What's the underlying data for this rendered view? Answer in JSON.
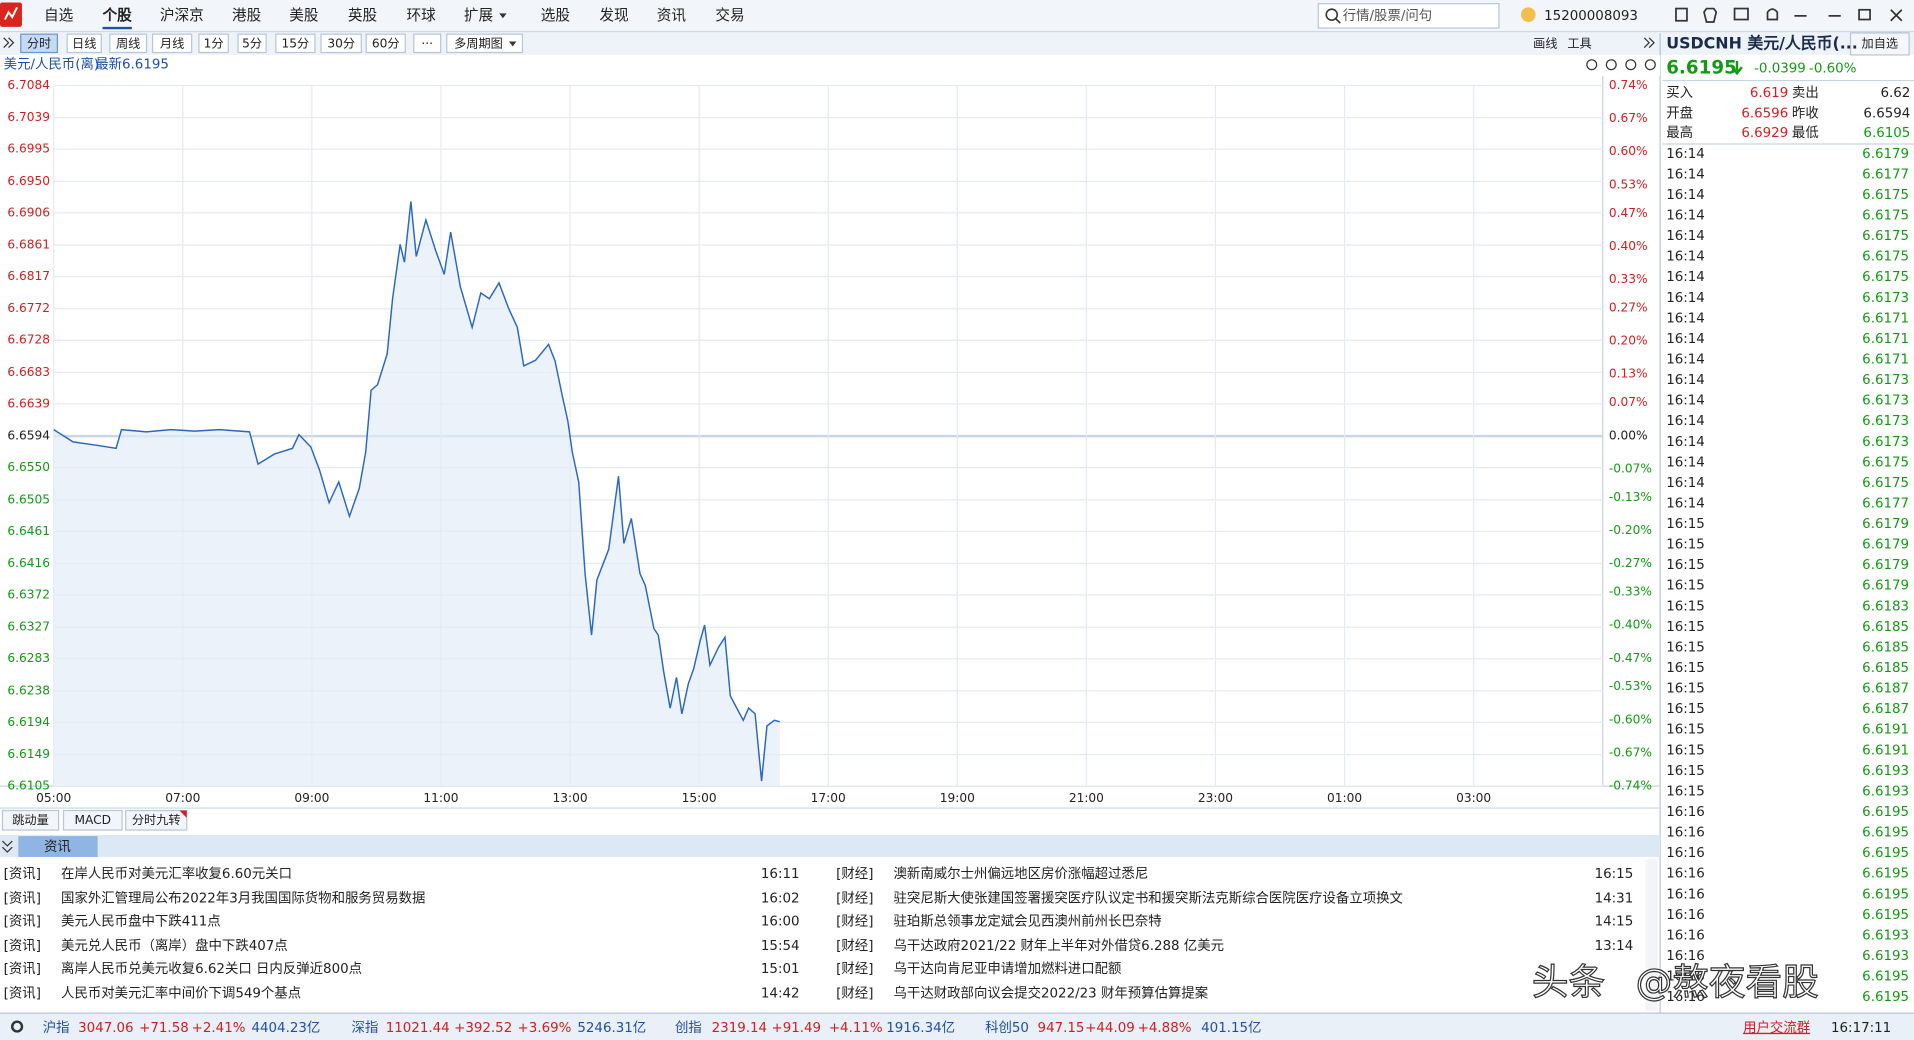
{
  "menu": {
    "items": [
      {
        "label": "自选"
      },
      {
        "label": "个股",
        "selected": true
      },
      {
        "label": "沪深京"
      },
      {
        "label": "港股"
      },
      {
        "label": "美股"
      },
      {
        "label": "英股"
      },
      {
        "label": "环球"
      },
      {
        "label": "扩展"
      },
      {
        "label": "选股"
      },
      {
        "label": "发现"
      },
      {
        "label": "资讯"
      },
      {
        "label": "交易"
      }
    ],
    "search": "行情/股票/问句",
    "account": "15200008093"
  },
  "toolbar": {
    "periods": [
      {
        "label": "分时",
        "selected": true
      },
      {
        "label": "日线"
      },
      {
        "label": "周线"
      },
      {
        "label": "月线"
      },
      {
        "label": "1分"
      },
      {
        "label": "5分"
      },
      {
        "label": "15分"
      },
      {
        "label": "30分"
      },
      {
        "label": "60分"
      },
      {
        "label": "···"
      },
      {
        "label": "多周期图"
      }
    ],
    "right": [
      "画线",
      "工具"
    ]
  },
  "chart_header": {
    "name": "美元/人民币(离)",
    "latest": "最新6.6195"
  },
  "chart_data": {
    "type": "line",
    "color": "#2a67c2",
    "grid": true,
    "x": [
      "05:00",
      "05:18",
      "05:41",
      "05:58",
      "06:03",
      "06:26",
      "06:49",
      "07:11",
      "07:34",
      "08:02",
      "08:10",
      "08:25",
      "08:42",
      "08:48",
      "08:59",
      "09:07",
      "09:16",
      "09:25",
      "09:35",
      "09:44",
      "09:50",
      "09:55",
      "10:01",
      "10:10",
      "10:15",
      "10:22",
      "10:26",
      "10:32",
      "10:37",
      "10:46",
      "10:55",
      "11:03",
      "11:09",
      "11:18",
      "11:29",
      "11:37",
      "11:45",
      "11:54",
      "12:03",
      "12:11",
      "12:17",
      "12:28",
      "12:40",
      "12:46",
      "12:53",
      "12:58",
      "13:02",
      "13:08",
      "13:14",
      "13:20",
      "13:25",
      "13:36",
      "13:45",
      "13:50",
      "13:57",
      "14:05",
      "14:10",
      "14:18",
      "14:22",
      "14:27",
      "14:33",
      "14:39",
      "14:44",
      "14:50",
      "14:55",
      "15:01",
      "15:05",
      "15:10",
      "15:18",
      "15:24",
      "15:29",
      "15:35",
      "15:41",
      "15:46",
      "15:52",
      "15:58",
      "16:03",
      "16:10",
      "16:15"
    ],
    "values": [
      6.6603,
      6.6586,
      6.6581,
      6.6577,
      6.6603,
      6.66,
      6.6603,
      6.6601,
      6.6603,
      6.66,
      6.6555,
      6.6569,
      6.6577,
      6.6596,
      6.6579,
      6.6547,
      6.6501,
      6.653,
      6.6482,
      6.6521,
      6.6572,
      6.6658,
      6.6666,
      6.6709,
      6.6786,
      6.6862,
      6.6837,
      6.6922,
      6.6845,
      6.6896,
      6.6854,
      6.682,
      6.6879,
      6.6803,
      6.6746,
      6.6794,
      6.6786,
      6.6808,
      6.6772,
      6.6746,
      6.6692,
      6.67,
      6.6722,
      6.6699,
      6.6649,
      6.6615,
      6.6572,
      6.653,
      6.6402,
      6.6316,
      6.6393,
      6.6436,
      6.6538,
      6.6444,
      6.6479,
      6.6402,
      6.6385,
      6.6325,
      6.6316,
      6.6265,
      6.6214,
      6.6257,
      6.6206,
      6.6248,
      6.6269,
      6.6308,
      6.633,
      6.6274,
      6.6299,
      6.6313,
      6.6231,
      6.6214,
      6.6197,
      6.6214,
      6.6206,
      6.6112,
      6.6189,
      6.6197,
      6.6195
    ],
    "xticks": [
      "05:00",
      "07:00",
      "09:00",
      "11:00",
      "13:00",
      "15:00",
      "17:00",
      "19:00",
      "21:00",
      "23:00",
      "01:00",
      "03:00"
    ],
    "ylim": [
      6.6105,
      6.7084
    ],
    "yticks": [
      6.7084,
      6.7039,
      {
        "value": 6.6995,
        "label": "6.6995"
      },
      {
        "value": 6.695,
        "label": "6.6950"
      },
      6.6906,
      6.6861,
      6.6817,
      6.6772,
      6.6728,
      6.6683,
      6.6639,
      6.6594,
      {
        "value": 6.655,
        "label": "6.6550"
      },
      6.6505,
      6.6461,
      6.6416,
      6.6372,
      6.6327,
      6.6283,
      6.6238,
      6.6194,
      6.6149,
      6.6105
    ],
    "y2lim": [
      -0.74,
      0.74
    ],
    "y2ticks": [
      {
        "value": 0.74,
        "label": "0.74%"
      },
      {
        "value": 0.67,
        "label": "0.67%"
      },
      {
        "value": 0.6,
        "label": "0.60%"
      },
      {
        "value": 0.53,
        "label": "0.53%"
      },
      {
        "value": 0.47,
        "label": "0.47%"
      },
      {
        "value": 0.4,
        "label": "0.40%"
      },
      {
        "value": 0.33,
        "label": "0.33%"
      },
      {
        "value": 0.27,
        "label": "0.27%"
      },
      {
        "value": 0.2,
        "label": "0.20%"
      },
      {
        "value": 0.13,
        "label": "0.13%"
      },
      {
        "value": 0.07,
        "label": "0.07%"
      },
      {
        "value": 0,
        "label": "0.00%"
      },
      {
        "value": -0.07,
        "label": "-0.07%"
      },
      {
        "value": -0.13,
        "label": "-0.13%"
      },
      {
        "value": -0.2,
        "label": "-0.20%"
      },
      {
        "value": -0.27,
        "label": "-0.27%"
      },
      {
        "value": -0.33,
        "label": "-0.33%"
      },
      {
        "value": -0.4,
        "label": "-0.40%"
      },
      {
        "value": -0.47,
        "label": "-0.47%"
      },
      {
        "value": -0.53,
        "label": "-0.53%"
      },
      {
        "value": -0.6,
        "label": "-0.60%"
      },
      {
        "value": -0.67,
        "label": "-0.67%"
      },
      {
        "value": -0.74,
        "label": "-0.74%"
      }
    ]
  },
  "indicator_tabs": [
    "跳动量",
    "MACD",
    "分时九转"
  ],
  "news": {
    "tab": "资讯",
    "left": [
      {
        "tag": "[资讯]",
        "title": "在岸人民币对美元汇率收复6.60元关口",
        "time": "16:11"
      },
      {
        "tag": "[资讯]",
        "title": "国家外汇管理局公布2022年3月我国国际货物和服务贸易数据",
        "time": "16:02"
      },
      {
        "tag": "[资讯]",
        "title": "美元人民币盘中下跌411点",
        "time": "16:00"
      },
      {
        "tag": "[资讯]",
        "title": "美元兑人民币（离岸）盘中下跌407点",
        "time": "15:54"
      },
      {
        "tag": "[资讯]",
        "title": "离岸人民币兑美元收复6.62关口 日内反弹近800点",
        "time": "15:01"
      },
      {
        "tag": "[资讯]",
        "title": "人民币对美元汇率中间价下调549个基点",
        "time": "14:42"
      }
    ],
    "right": [
      {
        "tag": "[财经]",
        "title": "澳新南威尔士州偏远地区房价涨幅超过悉尼",
        "time": "16:15"
      },
      {
        "tag": "[财经]",
        "title": "驻突尼斯大使张建国签署援突医疗队议定书和援突斯法克斯综合医院医疗设备立项换文",
        "time": "14:31"
      },
      {
        "tag": "[财经]",
        "title": "驻珀斯总领事龙定斌会见西澳州前州长巴奈特",
        "time": "14:15"
      },
      {
        "tag": "[财经]",
        "title": "乌干达政府2021/22 财年上半年对外借贷6.288 亿美元",
        "time": "13:14"
      },
      {
        "tag": "[财经]",
        "title": "乌干达向肯尼亚申请增加燃料进口配额"
      },
      {
        "tag": "[财经]",
        "title": "乌干达财政部向议会提交2022/23 财年预算估算提案"
      }
    ]
  },
  "quote": {
    "symbol": "USDCNH 美元/人民币(...",
    "add": "加自选",
    "price": "6.6195",
    "change": "-0.0399",
    "pct": "-0.60%",
    "fields": [
      {
        "label": "买入",
        "value": "6.619",
        "color": "#d21e1e"
      },
      {
        "label": "卖出",
        "value": "6.62",
        "color": "#222222"
      },
      {
        "label": "开盘",
        "value": "6.6596",
        "color": "#d21e1e"
      },
      {
        "label": "昨收",
        "value": "6.6594",
        "color": "#222222"
      },
      {
        "label": "最高",
        "value": "6.6929",
        "color": "#d21e1e"
      },
      {
        "label": "最低",
        "value": "6.6105",
        "color": "#139a13"
      }
    ],
    "ticks": [
      [
        "16:14",
        "6.6179"
      ],
      [
        "16:14",
        "6.6177"
      ],
      [
        "16:14",
        "6.6175"
      ],
      [
        "16:14",
        "6.6175"
      ],
      [
        "16:14",
        "6.6175"
      ],
      [
        "16:14",
        "6.6175"
      ],
      [
        "16:14",
        "6.6175"
      ],
      [
        "16:14",
        "6.6173"
      ],
      [
        "16:14",
        "6.6171"
      ],
      [
        "16:14",
        "6.6171"
      ],
      [
        "16:14",
        "6.6171"
      ],
      [
        "16:14",
        "6.6173"
      ],
      [
        "16:14",
        "6.6173"
      ],
      [
        "16:14",
        "6.6173"
      ],
      [
        "16:14",
        "6.6173"
      ],
      [
        "16:14",
        "6.6175"
      ],
      [
        "16:14",
        "6.6175"
      ],
      [
        "16:14",
        "6.6177"
      ],
      [
        "16:15",
        "6.6179"
      ],
      [
        "16:15",
        "6.6179"
      ],
      [
        "16:15",
        "6.6179"
      ],
      [
        "16:15",
        "6.6179"
      ],
      [
        "16:15",
        "6.6183"
      ],
      [
        "16:15",
        "6.6185"
      ],
      [
        "16:15",
        "6.6185"
      ],
      [
        "16:15",
        "6.6185"
      ],
      [
        "16:15",
        "6.6187"
      ],
      [
        "16:15",
        "6.6187"
      ],
      [
        "16:15",
        "6.6191"
      ],
      [
        "16:15",
        "6.6191"
      ],
      [
        "16:15",
        "6.6193"
      ],
      [
        "16:15",
        "6.6193"
      ],
      [
        "16:16",
        "6.6195"
      ],
      [
        "16:16",
        "6.6195"
      ],
      [
        "16:16",
        "6.6195"
      ],
      [
        "16:16",
        "6.6195"
      ],
      [
        "16:16",
        "6.6195"
      ],
      [
        "16:16",
        "6.6195"
      ],
      [
        "16:16",
        "6.6193"
      ],
      [
        "16:16",
        "6.6193"
      ],
      [
        "16:16",
        "6.6195"
      ],
      [
        "16:16",
        "6.6195"
      ]
    ]
  },
  "status": {
    "indices": [
      {
        "name": "沪指",
        "value": "3047.06",
        "change": "+71.58",
        "pct": "+2.41%",
        "amount": "4404.23亿"
      },
      {
        "name": "深指",
        "value": "11021.44",
        "change": "+392.52",
        "pct": "+3.69%",
        "amount": "5246.31亿"
      },
      {
        "name": "创指",
        "value": "2319.14",
        "change": "+91.49",
        "pct": "+4.11%",
        "amount": "1916.34亿"
      },
      {
        "name": "科创50",
        "value": "947.15",
        "change": "+44.09",
        "pct": "+4.88%",
        "amount": "401.15亿"
      }
    ],
    "group": "用户交流群",
    "clock": "16:17:11"
  },
  "watermark": [
    "头条",
    "@熬夜看股"
  ]
}
